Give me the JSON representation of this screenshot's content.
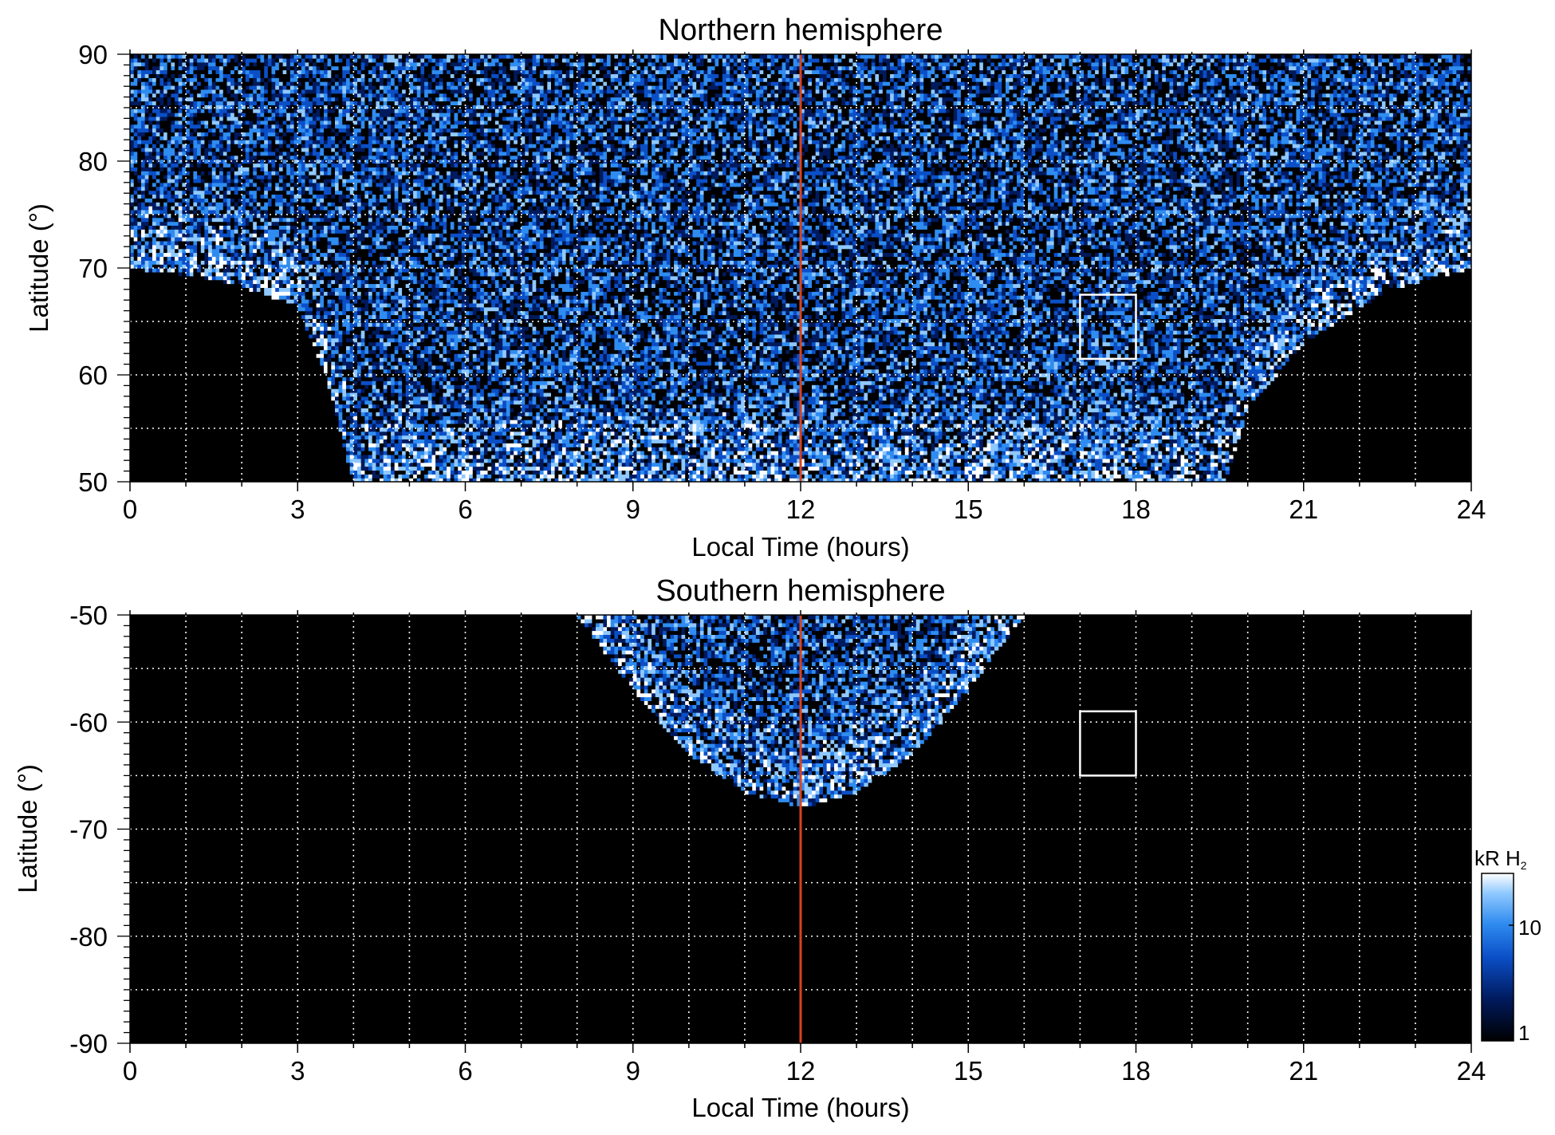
{
  "chart_data": [
    {
      "type": "heatmap",
      "title": "Northern hemisphere",
      "xlabel": "Local Time (hours)",
      "ylabel": "Latitude (°)",
      "xlim": [
        0,
        24
      ],
      "ylim": [
        50,
        90
      ],
      "xticks": [
        "0",
        "3",
        "6",
        "9",
        "12",
        "15",
        "18",
        "21",
        "24"
      ],
      "yticks": [
        "50",
        "60",
        "70",
        "80",
        "90"
      ],
      "grid": true,
      "marker_line_x": 12,
      "marker_line_color": "#d9431e",
      "box": {
        "x": [
          17,
          18
        ],
        "y": [
          61.5,
          67.5
        ],
        "color": "#ffffff"
      },
      "coverage_boundary": [
        [
          0,
          70
        ],
        [
          1.5,
          69
        ],
        [
          3,
          66.5
        ],
        [
          3.5,
          60
        ],
        [
          4,
          50
        ],
        [
          19.6,
          50
        ],
        [
          20,
          57
        ],
        [
          21,
          63
        ],
        [
          22.5,
          68
        ],
        [
          24,
          70
        ]
      ]
    },
    {
      "type": "heatmap",
      "title": "Southern hemisphere",
      "xlabel": "Local Time (hours)",
      "ylabel": "Latitude (°)",
      "xlim": [
        0,
        24
      ],
      "ylim": [
        -90,
        -50
      ],
      "xticks": [
        "0",
        "3",
        "6",
        "9",
        "12",
        "15",
        "18",
        "21",
        "24"
      ],
      "yticks": [
        "-90",
        "-80",
        "-70",
        "-60",
        "-50"
      ],
      "grid": true,
      "marker_line_x": 12,
      "marker_line_color": "#d9431e",
      "box": {
        "x": [
          17,
          18
        ],
        "y": [
          -65,
          -59
        ],
        "color": "#ffffff"
      },
      "coverage_boundary": [
        [
          8,
          -50
        ],
        [
          9,
          -57
        ],
        [
          10,
          -63
        ],
        [
          11,
          -66.5
        ],
        [
          12,
          -68
        ],
        [
          13,
          -66.5
        ],
        [
          14,
          -63
        ],
        [
          15,
          -57
        ],
        [
          16,
          -50
        ]
      ]
    }
  ],
  "colorbar": {
    "label_main": "kR H",
    "label_sub": "2",
    "scale": "log",
    "range": [
      1,
      20
    ],
    "ticks": [
      "1",
      "10"
    ],
    "colors": [
      "#000000",
      "#001a5e",
      "#0b4fc7",
      "#2f8cf0",
      "#8fc8ff",
      "#ffffff"
    ]
  }
}
